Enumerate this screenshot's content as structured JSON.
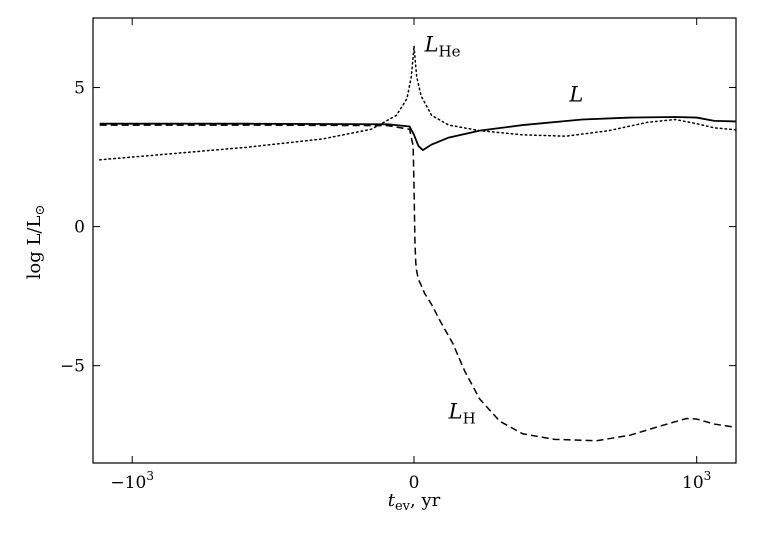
{
  "chart_data": {
    "type": "line",
    "title": "",
    "xlabel": {
      "main": "t",
      "sub": "ev",
      "unit": ",  yr"
    },
    "ylabel": {
      "prefix": "log  L/L",
      "sub": "⊙"
    },
    "xlim": [
      -1500,
      1500
    ],
    "ylim": [
      -8.5,
      7.5
    ],
    "x_scale": "symlog",
    "x_ticks": [
      {
        "value": -1000,
        "base": "−10",
        "exp": "3"
      },
      {
        "value": 0,
        "label": "0"
      },
      {
        "value": 1000,
        "base": "10",
        "exp": "3"
      }
    ],
    "y_ticks": [
      {
        "value": 5,
        "label": "5"
      },
      {
        "value": 0,
        "label": "0"
      },
      {
        "value": -5,
        "label": "−5"
      }
    ],
    "grid": false,
    "series": [
      {
        "name": "L",
        "style": "solid",
        "x": [
          -1400,
          -800,
          -300,
          -30,
          -5,
          0,
          5,
          10,
          20,
          40,
          80,
          150,
          300,
          500,
          800,
          1000,
          1200,
          1500
        ],
        "y": [
          3.7,
          3.7,
          3.7,
          3.68,
          3.6,
          3.3,
          2.9,
          2.75,
          2.95,
          3.2,
          3.45,
          3.65,
          3.85,
          3.92,
          3.94,
          3.92,
          3.8,
          3.78
        ]
      },
      {
        "name": "L_He",
        "style": "dotted",
        "x": [
          -1400,
          -1000,
          -600,
          -300,
          -120,
          -50,
          -20,
          -8,
          -3,
          -1,
          0,
          1,
          3,
          8,
          20,
          40,
          80,
          150,
          250,
          400,
          600,
          800,
          1000,
          1200,
          1500
        ],
        "y": [
          2.4,
          2.5,
          2.65,
          2.85,
          3.15,
          3.5,
          4.0,
          4.6,
          5.4,
          6.1,
          6.5,
          6.1,
          5.4,
          4.7,
          4.0,
          3.65,
          3.45,
          3.3,
          3.25,
          3.45,
          3.75,
          3.85,
          3.7,
          3.55,
          3.48
        ]
      },
      {
        "name": "L_H",
        "style": "dashed",
        "x": [
          -1400,
          -800,
          -300,
          -30,
          -5,
          -1,
          0,
          1,
          2,
          3,
          5,
          8,
          12,
          20,
          30,
          45,
          60,
          80,
          110,
          150,
          220,
          350,
          500,
          700,
          900,
          1000,
          1200,
          1500
        ],
        "y": [
          3.65,
          3.65,
          3.65,
          3.63,
          3.5,
          2.9,
          1.5,
          -0.5,
          -1.3,
          -1.6,
          -1.9,
          -2.1,
          -2.4,
          -2.8,
          -3.4,
          -4.2,
          -5.2,
          -6.2,
          -7.0,
          -7.45,
          -7.65,
          -7.7,
          -7.5,
          -7.15,
          -6.9,
          -6.92,
          -7.1,
          -7.22
        ]
      }
    ],
    "annotations": [
      {
        "main": "L",
        "sub": "He",
        "x": 12,
        "y": 6.3
      },
      {
        "main": "L",
        "sub": "",
        "x": 260,
        "y": 4.5
      },
      {
        "main": "L",
        "sub": "H",
        "x": 40,
        "y": -6.9
      }
    ]
  }
}
